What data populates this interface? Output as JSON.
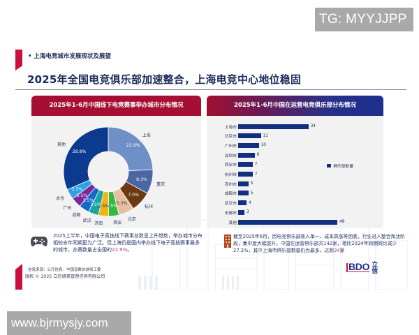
{
  "watermarks": {
    "top": "TG: MYYJJPP",
    "bottom": "www.bjrmysjy.com"
  },
  "header": {
    "section_label": "• 上海电竞城市发展现状及展望",
    "title": "2025年全国电竞俱乐部加速整合，上海电竞中心地位稳固"
  },
  "left_panel": {
    "title": "2025年1-6月中国线下电竞赛事举办城市分布情况"
  },
  "right_panel": {
    "title": "2025年1-6月中国在运营电竞俱乐部分布情况",
    "legend": "俱乐部数量"
  },
  "chart_data": [
    {
      "type": "pie",
      "variant": "donut",
      "title": "2025年1-6月中国线下电竞赛事举办城市分布情况",
      "categories": [
        "上海",
        "重庆",
        "杭州",
        "北京",
        "西安",
        "济南",
        "武汉",
        "成都",
        "广州",
        "太仓",
        "其他"
      ],
      "values": [
        22.9,
        8.3,
        7.0,
        5.3,
        3.5,
        3.5,
        3.5,
        3.5,
        3.5,
        3.5,
        29.8
      ],
      "labels": [
        "22.9%",
        "8.3%",
        "7.0%",
        "5.3%",
        "3.5%",
        "3.5%",
        "3.5%",
        "3.5%",
        "3.5%",
        "3.5%",
        "29.8%"
      ],
      "colors": [
        "#6f90c6",
        "#4a67a3",
        "#6b3a12",
        "#e6bf9f",
        "#35b843",
        "#f0b318",
        "#18a5a3",
        "#1667c7",
        "#7a2a97",
        "#2aa3e3",
        "#0b3a8f"
      ],
      "unit": "%"
    },
    {
      "type": "bar",
      "orientation": "horizontal",
      "title": "2025年1-6月中国在运营电竞俱乐部分布情况",
      "categories": [
        "上海市",
        "北京市",
        "广州市",
        "深圳市",
        "西安市",
        "杭州市",
        "苏州市",
        "成都市",
        "武汉市",
        "无锡市",
        "其他"
      ],
      "series": [
        {
          "name": "俱乐部数量",
          "values": [
            34,
            11,
            10,
            8,
            7,
            7,
            5,
            5,
            4,
            3,
            48
          ]
        }
      ],
      "legend_position": "right",
      "grid": false,
      "xlim": [
        0,
        48
      ],
      "bar_color": "#12307f"
    }
  ],
  "notes": {
    "left": {
      "text": "2025上半年，中国电子竞技线下赛事总数呈上升趋势，举办城市分布相较去年同期更为广泛。但上海仍是国内举办线下电子竞技赛事最多的城市，办赛数量占全国的",
      "highlight": "22.9%",
      "tail": "。"
    },
    "right": {
      "text": "截至2025年6月，因电竞俱乐部收入单一、成本高涨等因素，行业进入整合淘汰阶段，集中度大幅提升。中国在运营俱乐部共142家，相比2024年同期同比减少27.2%，其中上海市俱乐部数量仍为最多，达到",
      "highlight": "34",
      "tail": "家"
    }
  },
  "footer": {
    "source": "信息来源：公开信息、中国音数协游戏工委",
    "copyright": "版权 © 2025 立信德豪管理咨询有限公司",
    "logo_text": "BDO",
    "logo_cn": "立信"
  }
}
